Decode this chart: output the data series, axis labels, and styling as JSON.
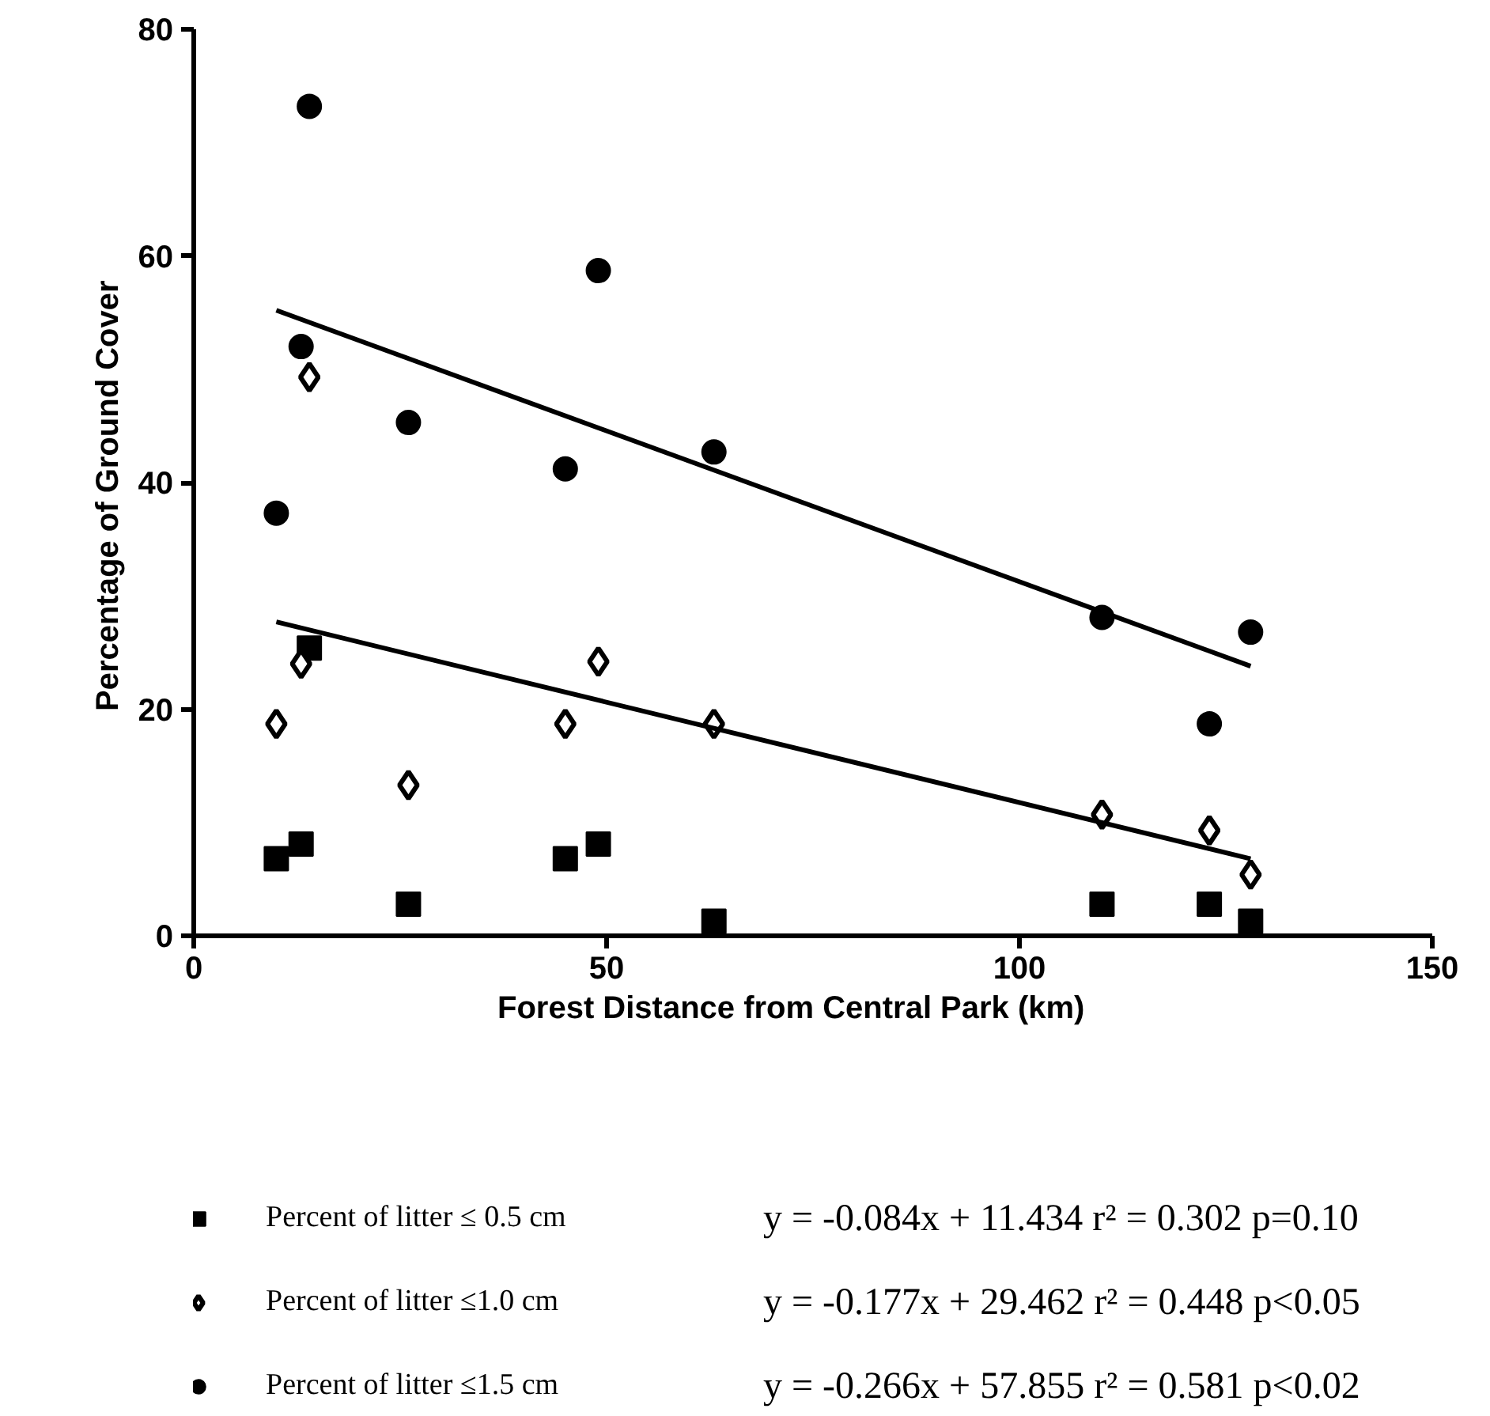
{
  "chart_data": {
    "type": "scatter",
    "xlabel": "Forest  Distance  from  Central  Park  (km)",
    "ylabel": "Percentage  of  Ground  Cover",
    "xlim": [
      0,
      150
    ],
    "xticks": [
      0,
      50,
      100,
      150
    ],
    "ylim": [
      0,
      80
    ],
    "yticks": [
      0,
      20,
      40,
      60,
      80
    ],
    "grid": false,
    "legend": "bottom",
    "series": [
      {
        "name": "Percent of litter ≤ 0.5 cm",
        "color": "#000000",
        "marker": "square",
        "x": [
          10,
          13,
          14,
          26,
          45,
          49,
          63,
          110,
          123,
          128
        ],
        "values": [
          6.8,
          8.1,
          25.4,
          2.8,
          6.8,
          8.1,
          1.3,
          2.8,
          2.8,
          1.3
        ]
      },
      {
        "name": "Percent of litter ≤1.0 cm",
        "color": "#000000",
        "marker": "diamond",
        "x": [
          10,
          13,
          14,
          26,
          45,
          49,
          63,
          110,
          123,
          128
        ],
        "values": [
          18.7,
          24.0,
          49.3,
          13.3,
          18.7,
          24.2,
          18.7,
          10.7,
          9.3,
          5.4
        ]
      },
      {
        "name": "Percent of litter ≤1.5 cm",
        "color": "#000000",
        "marker": "circle",
        "x": [
          10,
          13,
          14,
          26,
          45,
          49,
          63,
          110,
          123,
          128
        ],
        "values": [
          37.3,
          52.0,
          73.2,
          45.3,
          41.2,
          58.7,
          42.7,
          28.1,
          18.7,
          26.8
        ]
      },
      {
        "type": "line",
        "color": "#000000",
        "line_style": "solid",
        "x": [
          10,
          128
        ],
        "values": [
          27.7,
          6.8
        ]
      },
      {
        "type": "line",
        "color": "#000000",
        "line_style": "solid",
        "x": [
          10,
          128
        ],
        "values": [
          55.2,
          23.8
        ]
      }
    ],
    "annotations": [
      "y =  -0.084x + 11.434   r² = 0.302    p=0.10",
      "y =  -0.177x + 29.462   r² = 0.448    p<0.05",
      "y =  -0.266x + 57.855   r² = 0.581    p<0.02"
    ]
  }
}
